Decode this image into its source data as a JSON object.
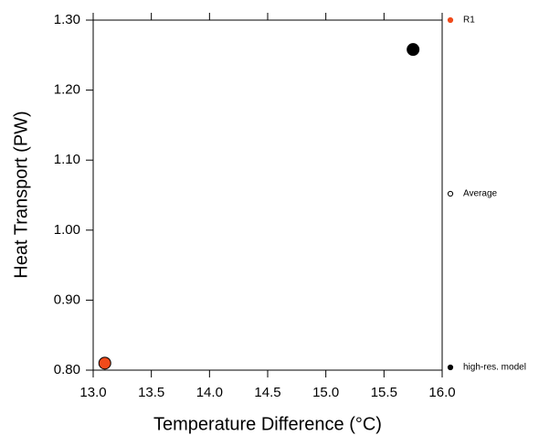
{
  "chart_data": {
    "type": "scatter",
    "x_label": "Temperature Difference (°C)",
    "y_label": "Heat Transport (PW)",
    "xlim": [
      13.0,
      16.0
    ],
    "xticks": [
      {
        "value": 13.0,
        "label": "13.0"
      },
      {
        "value": 13.5,
        "label": "13.5"
      },
      {
        "value": 14.0,
        "label": "14.0"
      },
      {
        "value": 14.5,
        "label": "14.5"
      },
      {
        "value": 15.0,
        "label": "15.0"
      },
      {
        "value": 15.5,
        "label": "15.5"
      },
      {
        "value": 16.0,
        "label": "16.0"
      }
    ],
    "ylim": [
      0.8,
      1.3
    ],
    "yticks": [
      {
        "value": 0.8,
        "label": "0.80"
      },
      {
        "value": 0.9,
        "label": "0.90"
      },
      {
        "value": 1.0,
        "label": "1.00"
      },
      {
        "value": 1.1,
        "label": "1.10"
      },
      {
        "value": 1.2,
        "label": "1.20"
      },
      {
        "value": 1.3,
        "label": "1.30"
      }
    ],
    "legend": "right",
    "series": [
      {
        "name": "R1",
        "color": "#f04a1a",
        "marker": "filled",
        "x": [
          13.1
        ],
        "values": [
          0.81
        ]
      },
      {
        "name": "Average",
        "color": "#000000",
        "marker": "open",
        "x": [],
        "values": []
      },
      {
        "name": "high-res. model",
        "color": "#000000",
        "marker": "filled",
        "x": [
          15.75
        ],
        "values": [
          1.258
        ]
      }
    ]
  }
}
